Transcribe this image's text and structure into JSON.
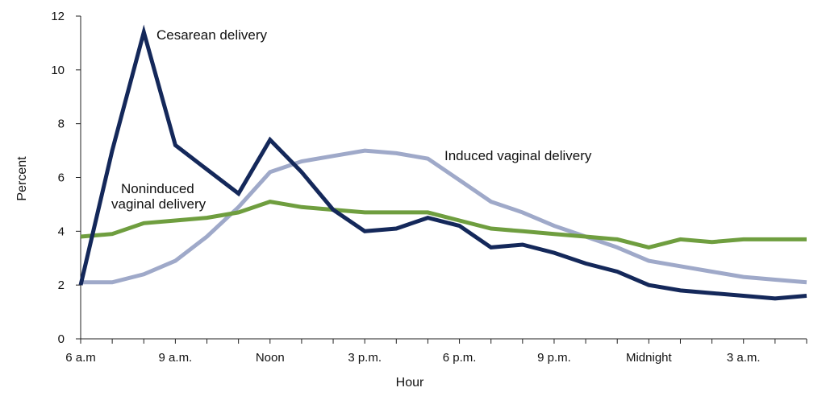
{
  "chart_data": {
    "type": "line",
    "title": "",
    "xlabel": "Hour",
    "ylabel": "Percent",
    "ylim": [
      0,
      12
    ],
    "y_ticks": [
      "0",
      "2",
      "4",
      "6",
      "8",
      "10",
      "12"
    ],
    "x_tick_labels": [
      "6 a.m",
      "9 a.m.",
      "Noon",
      "3 p.m.",
      "6 p.m.",
      "9 p.m.",
      "Midnight",
      "3 a.m."
    ],
    "x": [
      "6 a.m.",
      "7 a.m.",
      "8 a.m.",
      "9 a.m.",
      "10 a.m.",
      "11 a.m.",
      "Noon",
      "1 p.m.",
      "2 p.m.",
      "3 p.m.",
      "4 p.m.",
      "5 p.m.",
      "6 p.m.",
      "7 p.m.",
      "8 p.m.",
      "9 p.m.",
      "10 p.m.",
      "11 p.m.",
      "Midnight",
      "1 a.m.",
      "2 a.m.",
      "3 a.m.",
      "4 a.m.",
      "5 a.m."
    ],
    "grid": false,
    "legend": "none",
    "series": [
      {
        "name": "Cesarean delivery",
        "color": "#14285a",
        "values": [
          2.0,
          7.0,
          11.4,
          7.2,
          6.3,
          5.4,
          7.4,
          6.2,
          4.8,
          4.0,
          4.1,
          4.5,
          4.2,
          3.4,
          3.5,
          3.2,
          2.8,
          2.5,
          2.0,
          1.8,
          1.7,
          1.6,
          1.5,
          1.6
        ]
      },
      {
        "name": "Induced vaginal delivery",
        "color": "#9fa9c9",
        "values": [
          2.1,
          2.1,
          2.4,
          2.9,
          3.8,
          4.9,
          6.2,
          6.6,
          6.8,
          7.0,
          6.9,
          6.7,
          5.9,
          5.1,
          4.7,
          4.2,
          3.8,
          3.4,
          2.9,
          2.7,
          2.5,
          2.3,
          2.2,
          2.1
        ]
      },
      {
        "name": "Noninduced vaginal delivery",
        "color": "#6f9e3f",
        "values": [
          3.8,
          3.9,
          4.3,
          4.4,
          4.5,
          4.7,
          5.1,
          4.9,
          4.8,
          4.7,
          4.7,
          4.7,
          4.4,
          4.1,
          4.0,
          3.9,
          3.8,
          3.7,
          3.4,
          3.7,
          3.6,
          3.7,
          3.7,
          3.7
        ]
      }
    ],
    "annotations": {
      "cesarean": "Cesarean delivery",
      "induced": "Induced vaginal delivery",
      "noninduced_line1": "Noninduced",
      "noninduced_line2": "vaginal delivery"
    }
  }
}
